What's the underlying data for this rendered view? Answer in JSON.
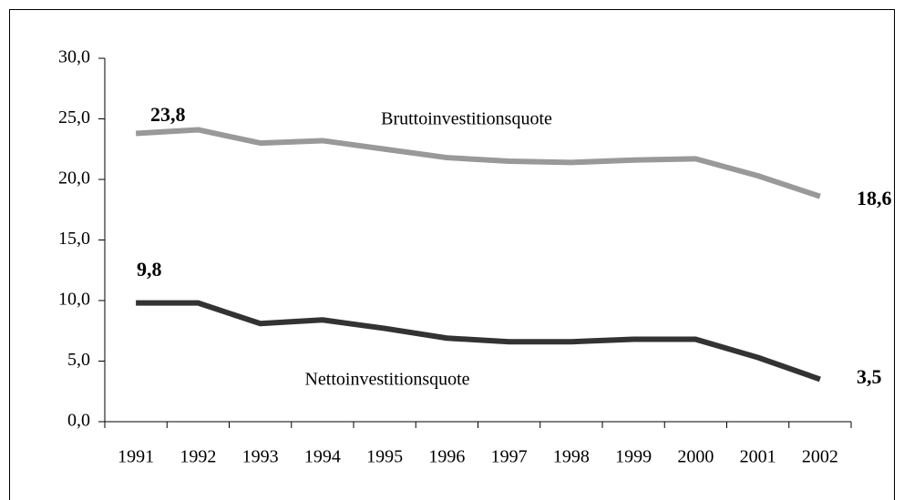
{
  "chart_data": {
    "type": "line",
    "categories": [
      "1991",
      "1992",
      "1993",
      "1994",
      "1995",
      "1996",
      "1997",
      "1998",
      "1999",
      "2000",
      "2001",
      "2002"
    ],
    "series": [
      {
        "name": "Bruttoinvestitionsquote",
        "color": "#999999",
        "values": [
          23.8,
          24.1,
          23.0,
          23.2,
          22.5,
          21.8,
          21.5,
          21.4,
          21.6,
          21.7,
          20.3,
          18.6
        ],
        "value_labels": [
          "23,8",
          null,
          null,
          null,
          null,
          null,
          null,
          null,
          null,
          null,
          null,
          "18,6"
        ]
      },
      {
        "name": "Nettoinvestitionsquote",
        "color": "#333333",
        "values": [
          9.8,
          9.8,
          8.1,
          8.4,
          7.7,
          6.9,
          6.6,
          6.6,
          6.8,
          6.8,
          5.3,
          3.5
        ],
        "value_labels": [
          "9,8",
          null,
          null,
          null,
          null,
          null,
          null,
          null,
          null,
          null,
          null,
          "3,5"
        ]
      }
    ],
    "ylim": [
      0,
      30
    ],
    "yticks": [
      {
        "value": 0,
        "label": "0,0"
      },
      {
        "value": 5,
        "label": "5,0"
      },
      {
        "value": 10,
        "label": "10,0"
      },
      {
        "value": 15,
        "label": "15,0"
      },
      {
        "value": 20,
        "label": "20,0"
      },
      {
        "value": 25,
        "label": "25,0"
      },
      {
        "value": 30,
        "label": "30,0"
      }
    ],
    "grid": false
  }
}
